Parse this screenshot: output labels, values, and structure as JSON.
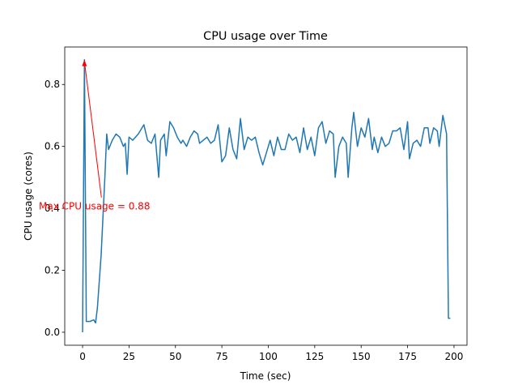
{
  "chart_data": {
    "type": "line",
    "title": "CPU usage over Time",
    "x_label": "Time (sec)",
    "y_label": "CPU usage (cores)",
    "series": [
      {
        "name": "CPU usage",
        "color": "#1f77b4",
        "x": [
          0,
          1,
          2,
          4,
          6,
          7,
          8,
          10,
          12,
          13,
          14,
          16,
          18,
          20,
          22,
          23,
          24,
          25,
          27,
          30,
          33,
          35,
          37,
          39,
          41,
          42,
          44,
          45,
          47,
          49,
          51,
          53,
          54,
          56,
          58,
          60,
          62,
          63,
          65,
          67,
          69,
          71,
          73,
          75,
          77,
          79,
          81,
          83,
          85,
          87,
          89,
          91,
          93,
          95,
          97,
          99,
          101,
          103,
          105,
          107,
          109,
          111,
          113,
          115,
          117,
          119,
          121,
          123,
          125,
          127,
          129,
          131,
          133,
          135,
          136,
          138,
          140,
          142,
          143,
          145,
          146,
          148,
          150,
          152,
          154,
          156,
          157,
          159,
          161,
          163,
          165,
          167,
          169,
          171,
          173,
          175,
          176,
          178,
          180,
          182,
          184,
          186,
          187,
          189,
          191,
          192,
          194,
          196,
          197,
          198
        ],
        "values": [
          0,
          0.88,
          0.035,
          0.035,
          0.04,
          0.03,
          0.08,
          0.25,
          0.5,
          0.64,
          0.59,
          0.62,
          0.64,
          0.63,
          0.6,
          0.61,
          0.51,
          0.63,
          0.62,
          0.64,
          0.67,
          0.62,
          0.61,
          0.64,
          0.5,
          0.62,
          0.64,
          0.57,
          0.68,
          0.66,
          0.63,
          0.61,
          0.62,
          0.6,
          0.63,
          0.65,
          0.64,
          0.61,
          0.62,
          0.63,
          0.61,
          0.62,
          0.67,
          0.55,
          0.57,
          0.66,
          0.59,
          0.56,
          0.69,
          0.59,
          0.63,
          0.62,
          0.63,
          0.58,
          0.54,
          0.58,
          0.62,
          0.57,
          0.63,
          0.59,
          0.59,
          0.64,
          0.62,
          0.63,
          0.58,
          0.66,
          0.59,
          0.63,
          0.57,
          0.66,
          0.68,
          0.61,
          0.65,
          0.64,
          0.5,
          0.6,
          0.63,
          0.61,
          0.5,
          0.66,
          0.71,
          0.6,
          0.66,
          0.63,
          0.69,
          0.59,
          0.63,
          0.58,
          0.63,
          0.6,
          0.61,
          0.65,
          0.65,
          0.66,
          0.59,
          0.68,
          0.56,
          0.61,
          0.62,
          0.6,
          0.66,
          0.66,
          0.61,
          0.66,
          0.65,
          0.6,
          0.7,
          0.64,
          0.045,
          0.045
        ]
      }
    ],
    "annotation": {
      "text": "Max CPU usage = 0.88",
      "x": 1,
      "y": 0.88,
      "color": "#ff0000"
    },
    "xlim": [
      -9.6,
      207
    ],
    "ylim": [
      -0.042,
      0.921
    ],
    "xticks": [
      0,
      25,
      50,
      75,
      100,
      125,
      150,
      175,
      200
    ],
    "yticks": [
      {
        "value": 0,
        "label": "0.0"
      },
      {
        "value": 0.2,
        "label": "0.2"
      },
      {
        "value": 0.4,
        "label": "0.4"
      },
      {
        "value": 0.6,
        "label": "0.6"
      },
      {
        "value": 0.8,
        "label": "0.8"
      }
    ]
  }
}
